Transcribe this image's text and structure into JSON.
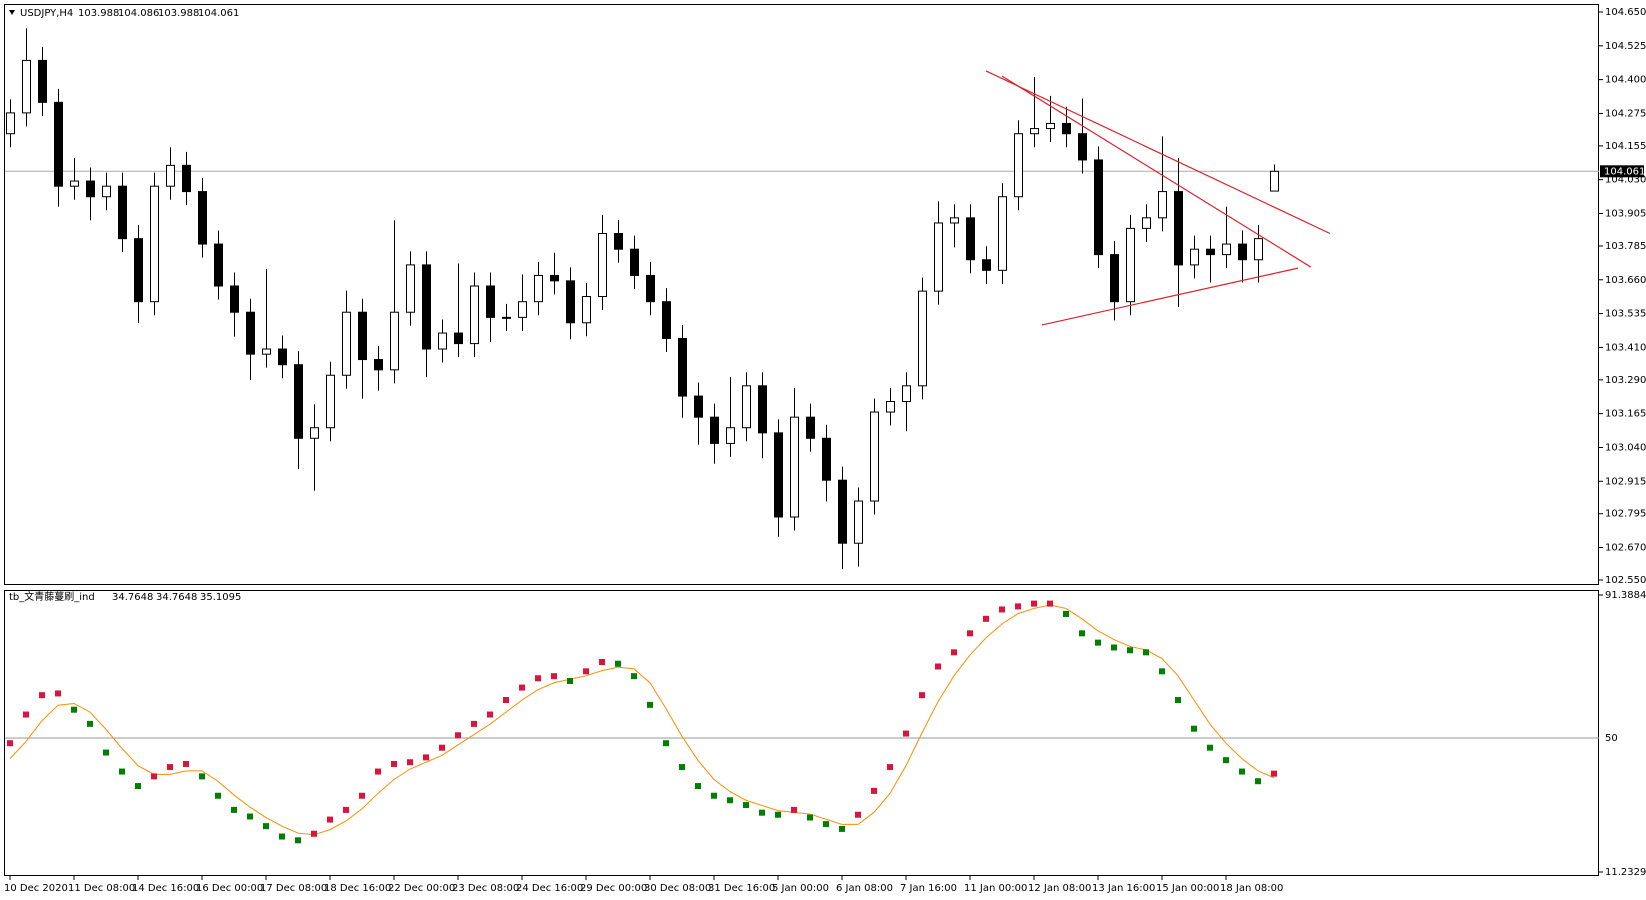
{
  "chart_data": [
    {
      "type": "candlestick",
      "title": "USDJPY,H4",
      "categories": [
        "10 Dec 2020",
        null,
        null,
        null,
        "11 Dec 08:00",
        null,
        null,
        null,
        "14 Dec 16:00",
        null,
        null,
        null,
        "16 Dec 00:00",
        null,
        null,
        null,
        "17 Dec 08:00",
        null,
        null,
        null,
        "18 Dec 16:00",
        null,
        null,
        null,
        "22 Dec 00:00",
        null,
        null,
        null,
        "23 Dec 08:00",
        null,
        null,
        null,
        "24 Dec 16:00",
        null,
        null,
        null,
        "29 Dec 00:00",
        null,
        null,
        null,
        "30 Dec 08:00",
        null,
        null,
        null,
        "31 Dec 16:00",
        null,
        null,
        null,
        "5 Jan 00:00",
        null,
        null,
        null,
        "6 Jan 08:00",
        null,
        null,
        null,
        "7 Jan 16:00",
        null,
        null,
        null,
        "11 Jan 00:00",
        null,
        null,
        null,
        "12 Jan 08:00",
        null,
        null,
        null,
        "13 Jan 16:00",
        null,
        null,
        null,
        "15 Jan 00:00",
        null,
        null,
        null,
        "18 Jan 08:00",
        null,
        null,
        null
      ],
      "open": [
        104.2,
        104.277,
        104.471,
        104.316,
        104.006,
        104.025,
        103.967,
        104.006,
        103.812,
        103.579,
        104.006,
        104.083,
        103.986,
        103.792,
        103.637,
        103.54,
        103.385,
        103.404,
        103.346,
        103.074,
        103.113,
        103.307,
        103.54,
        103.365,
        103.327,
        103.54,
        103.715,
        103.404,
        103.463,
        103.424,
        103.637,
        103.521,
        103.521,
        103.579,
        103.676,
        103.656,
        103.501,
        103.598,
        103.831,
        103.773,
        103.676,
        103.579,
        103.443,
        103.23,
        103.152,
        103.055,
        103.113,
        103.268,
        103.094,
        102.783,
        103.152,
        103.074,
        102.919,
        102.686,
        102.842,
        103.171,
        103.21,
        103.268,
        103.618,
        103.87,
        103.889,
        103.734,
        103.695,
        103.967,
        104.2,
        104.219,
        104.238,
        104.2,
        104.103,
        103.753,
        103.579,
        103.85,
        103.889,
        103.986,
        103.715,
        103.773,
        103.753,
        103.792,
        103.734,
        103.988
      ],
      "high": [
        104.327,
        104.59,
        104.521,
        104.366,
        104.11,
        104.075,
        104.056,
        104.056,
        103.862,
        104.056,
        104.15,
        104.133,
        104.036,
        103.842,
        103.687,
        103.59,
        103.7,
        103.454,
        103.396,
        103.2,
        103.357,
        103.62,
        103.59,
        103.415,
        103.88,
        103.765,
        103.765,
        103.513,
        103.72,
        103.687,
        103.687,
        103.571,
        103.68,
        103.726,
        103.76,
        103.706,
        103.648,
        103.9,
        103.881,
        103.823,
        103.726,
        103.629,
        103.493,
        103.28,
        103.202,
        103.3,
        103.318,
        103.318,
        103.144,
        103.26,
        103.202,
        103.124,
        102.969,
        102.892,
        103.221,
        103.26,
        103.318,
        103.668,
        103.95,
        103.939,
        103.939,
        103.784,
        104.017,
        104.25,
        104.41,
        104.34,
        104.3,
        104.33,
        104.153,
        103.803,
        103.9,
        103.939,
        104.19,
        104.11,
        103.823,
        103.823,
        103.93,
        103.842,
        103.862,
        104.086
      ],
      "low": [
        104.15,
        104.227,
        104.266,
        103.93,
        103.956,
        103.88,
        103.917,
        103.762,
        103.5,
        103.529,
        103.956,
        103.936,
        103.742,
        103.587,
        103.45,
        103.29,
        103.335,
        103.296,
        102.96,
        102.88,
        103.063,
        103.257,
        103.22,
        103.25,
        103.277,
        103.49,
        103.3,
        103.354,
        103.374,
        103.374,
        103.43,
        103.471,
        103.471,
        103.529,
        103.606,
        103.44,
        103.451,
        103.548,
        103.723,
        103.626,
        103.529,
        103.393,
        103.15,
        103.05,
        102.98,
        103.005,
        103.063,
        103.0,
        102.71,
        102.733,
        103.024,
        102.84,
        102.59,
        102.6,
        102.792,
        103.121,
        103.1,
        103.218,
        103.568,
        103.78,
        103.684,
        103.645,
        103.645,
        103.917,
        104.15,
        104.169,
        104.15,
        104.053,
        103.703,
        103.51,
        103.529,
        103.8,
        103.839,
        103.56,
        103.665,
        103.65,
        103.703,
        103.65,
        103.65,
        103.988
      ],
      "close": [
        104.277,
        104.471,
        104.316,
        104.006,
        104.025,
        103.967,
        104.006,
        103.812,
        103.579,
        104.006,
        104.083,
        103.986,
        103.792,
        103.637,
        103.54,
        103.385,
        103.404,
        103.346,
        103.074,
        103.113,
        103.307,
        103.54,
        103.365,
        103.327,
        103.54,
        103.715,
        103.404,
        103.463,
        103.424,
        103.637,
        103.521,
        103.521,
        103.579,
        103.676,
        103.656,
        103.501,
        103.598,
        103.831,
        103.773,
        103.676,
        103.579,
        103.443,
        103.23,
        103.152,
        103.055,
        103.113,
        103.268,
        103.094,
        102.783,
        103.152,
        103.074,
        102.919,
        102.686,
        102.842,
        103.171,
        103.21,
        103.268,
        103.618,
        103.87,
        103.889,
        103.734,
        103.695,
        103.967,
        104.2,
        104.219,
        104.238,
        104.2,
        104.103,
        103.753,
        103.579,
        103.85,
        103.889,
        103.986,
        103.715,
        103.773,
        103.753,
        103.792,
        103.734,
        103.812,
        104.061
      ],
      "up_color": "#ffffff",
      "down_color": "#000000",
      "trendline_color": "#e0202a",
      "trendlines": [
        {
          "x": [
            61,
            82.5
          ],
          "y": [
            104.432,
            103.831
          ]
        },
        {
          "x": [
            62,
            81.3
          ],
          "y": [
            104.413,
            103.707
          ]
        },
        {
          "x": [
            64.5,
            80.5
          ],
          "y": [
            103.493,
            103.703
          ]
        }
      ],
      "ylim": [
        102.55,
        104.65
      ],
      "yticks": [
        {
          "value": 104.65,
          "label": "104.650"
        },
        {
          "value": 104.525,
          "label": "104.525"
        },
        {
          "value": 104.4,
          "label": "104.400"
        },
        {
          "value": 104.275,
          "label": "104.275"
        },
        {
          "value": 104.155,
          "label": "104.155"
        },
        {
          "value": 104.03,
          "label": "104.030"
        },
        {
          "value": 103.905,
          "label": "103.905"
        },
        {
          "value": 103.785,
          "label": "103.785"
        },
        {
          "value": 103.66,
          "label": "103.660"
        },
        {
          "value": 103.535,
          "label": "103.535"
        },
        {
          "value": 103.41,
          "label": "103.410"
        },
        {
          "value": 103.29,
          "label": "103.290"
        },
        {
          "value": 103.165,
          "label": "103.165"
        },
        {
          "value": 103.04,
          "label": "103.040"
        },
        {
          "value": 102.915,
          "label": "102.915"
        },
        {
          "value": 102.795,
          "label": "102.795"
        },
        {
          "value": 102.67,
          "label": "102.670"
        },
        {
          "value": 102.55,
          "label": "102.550"
        }
      ]
    },
    {
      "type": "dots",
      "title": "tb_文青藤蔓刷_ind",
      "header_values": [
        34.7648,
        34.7648,
        35.1095
      ],
      "values": [
        48.5,
        56.8,
        62.4,
        62.9,
        58.2,
        54.1,
        45.8,
        40.3,
        36.1,
        38.9,
        41.6,
        42.5,
        38.9,
        33.3,
        29.2,
        27.3,
        24.5,
        21.5,
        20.4,
        22.3,
        26.4,
        29.2,
        33.3,
        40.3,
        42.5,
        43.0,
        44.4,
        47.2,
        50.8,
        54.1,
        56.8,
        61.0,
        64.6,
        67.3,
        67.9,
        66.5,
        69.3,
        72.0,
        71.5,
        67.9,
        59.6,
        48.5,
        41.6,
        36.1,
        33.3,
        32.0,
        30.6,
        28.4,
        27.8,
        29.2,
        27.0,
        25.1,
        23.7,
        27.8,
        34.7,
        41.6,
        51.3,
        62.4,
        70.7,
        74.8,
        80.3,
        84.5,
        87.2,
        88.1,
        88.9,
        88.9,
        85.9,
        80.3,
        77.6,
        76.2,
        75.4,
        74.8,
        69.3,
        61.0,
        52.7,
        47.2,
        43.6,
        40.3,
        37.5,
        39.7
      ],
      "signal": [
        44.0,
        49.0,
        55.0,
        59.5,
        60.0,
        57.5,
        52.5,
        47.0,
        42.0,
        39.5,
        39.5,
        40.5,
        40.5,
        37.5,
        33.5,
        30.0,
        27.0,
        24.5,
        22.5,
        22.0,
        23.5,
        26.0,
        29.5,
        34.0,
        38.0,
        41.0,
        43.0,
        45.0,
        48.0,
        51.0,
        54.0,
        57.5,
        61.0,
        64.0,
        66.0,
        67.0,
        68.0,
        69.5,
        70.5,
        70.0,
        66.0,
        58.5,
        50.5,
        43.5,
        38.0,
        34.5,
        32.0,
        30.5,
        29.0,
        28.5,
        28.0,
        26.5,
        25.0,
        25.0,
        28.5,
        34.0,
        42.0,
        51.5,
        60.5,
        68.0,
        74.0,
        79.0,
        83.0,
        86.0,
        87.5,
        88.5,
        87.5,
        84.5,
        81.0,
        78.5,
        76.5,
        75.5,
        73.0,
        68.0,
        61.0,
        54.0,
        48.5,
        44.0,
        40.5,
        38.5
      ],
      "rising_color": "#dc143c",
      "falling_color": "#008000",
      "signal_color": "#ff8c00",
      "level": 50,
      "ylim": [
        11.2329,
        91.3884
      ],
      "yticks": [
        91.3884,
        11.2329
      ]
    }
  ]
}
